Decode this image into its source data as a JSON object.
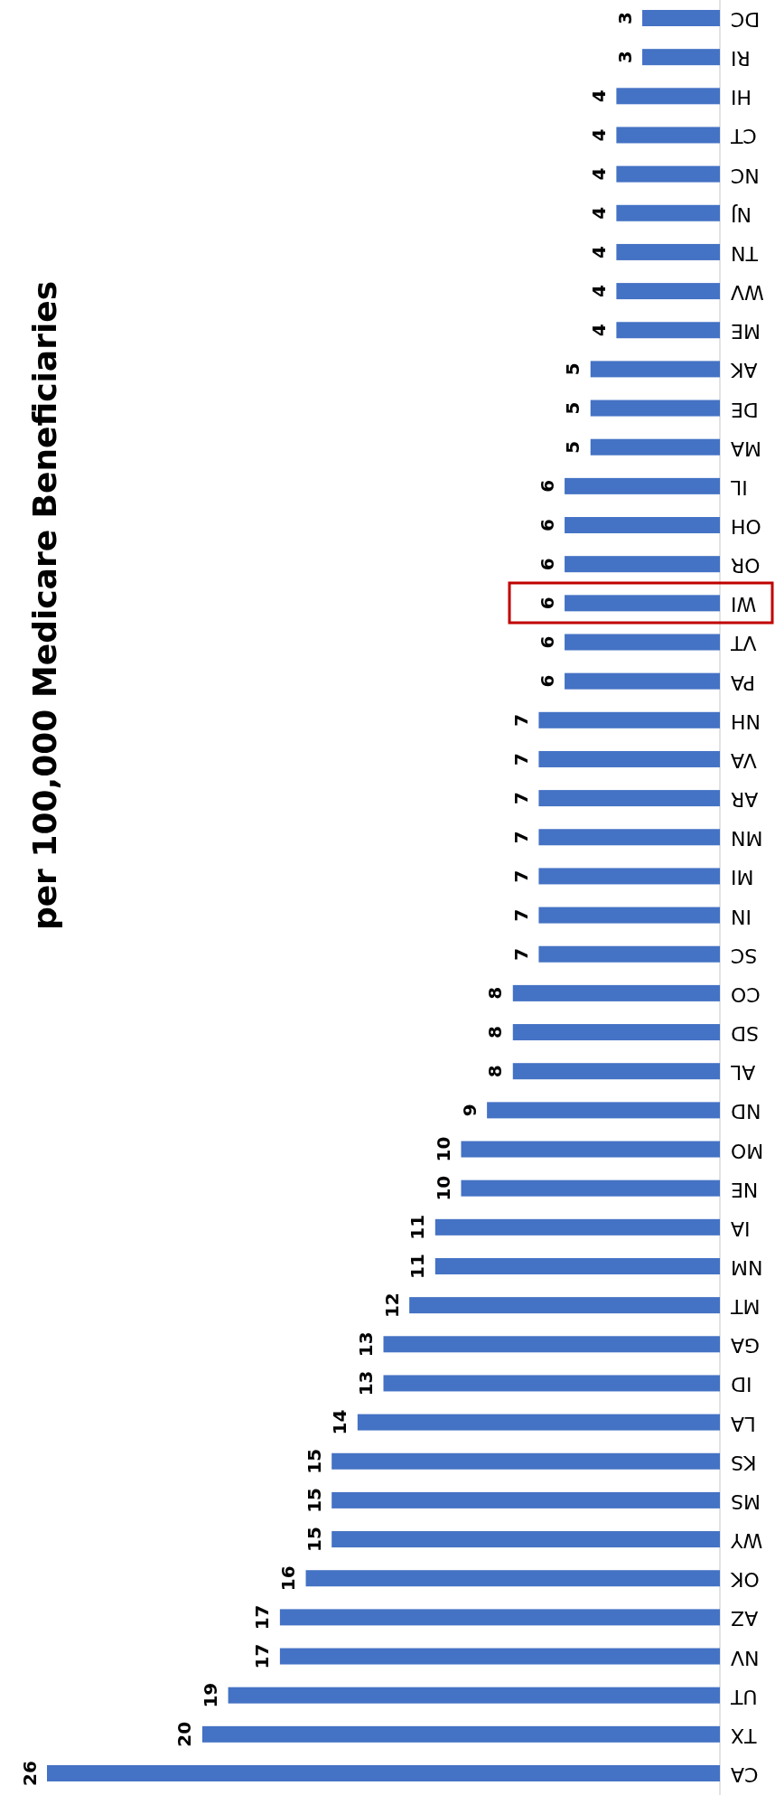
{
  "chart_data": {
    "type": "bar",
    "orientation": "horizontal",
    "title": "per 100,000 Medicare Beneficiaries",
    "categories": [
      "DC",
      "RI",
      "HI",
      "CT",
      "NC",
      "NJ",
      "TN",
      "WV",
      "ME",
      "AK",
      "DE",
      "MA",
      "IL",
      "OH",
      "OR",
      "WI",
      "VT",
      "PA",
      "NH",
      "VA",
      "AR",
      "MN",
      "MI",
      "IN",
      "SC",
      "CO",
      "SD",
      "AL",
      "ND",
      "MO",
      "NE",
      "IA",
      "NM",
      "MT",
      "GA",
      "ID",
      "LA",
      "KS",
      "MS",
      "WY",
      "OK",
      "AZ",
      "NV",
      "UT",
      "TX",
      "CA"
    ],
    "values": [
      3,
      3,
      4,
      4,
      4,
      4,
      4,
      4,
      4,
      5,
      5,
      5,
      6,
      6,
      6,
      6,
      6,
      6,
      7,
      7,
      7,
      7,
      7,
      7,
      7,
      8,
      8,
      8,
      9,
      10,
      10,
      11,
      11,
      12,
      13,
      13,
      14,
      15,
      15,
      15,
      16,
      17,
      17,
      19,
      20,
      26
    ],
    "color": "#4472c4",
    "data_labels": true
  }
}
